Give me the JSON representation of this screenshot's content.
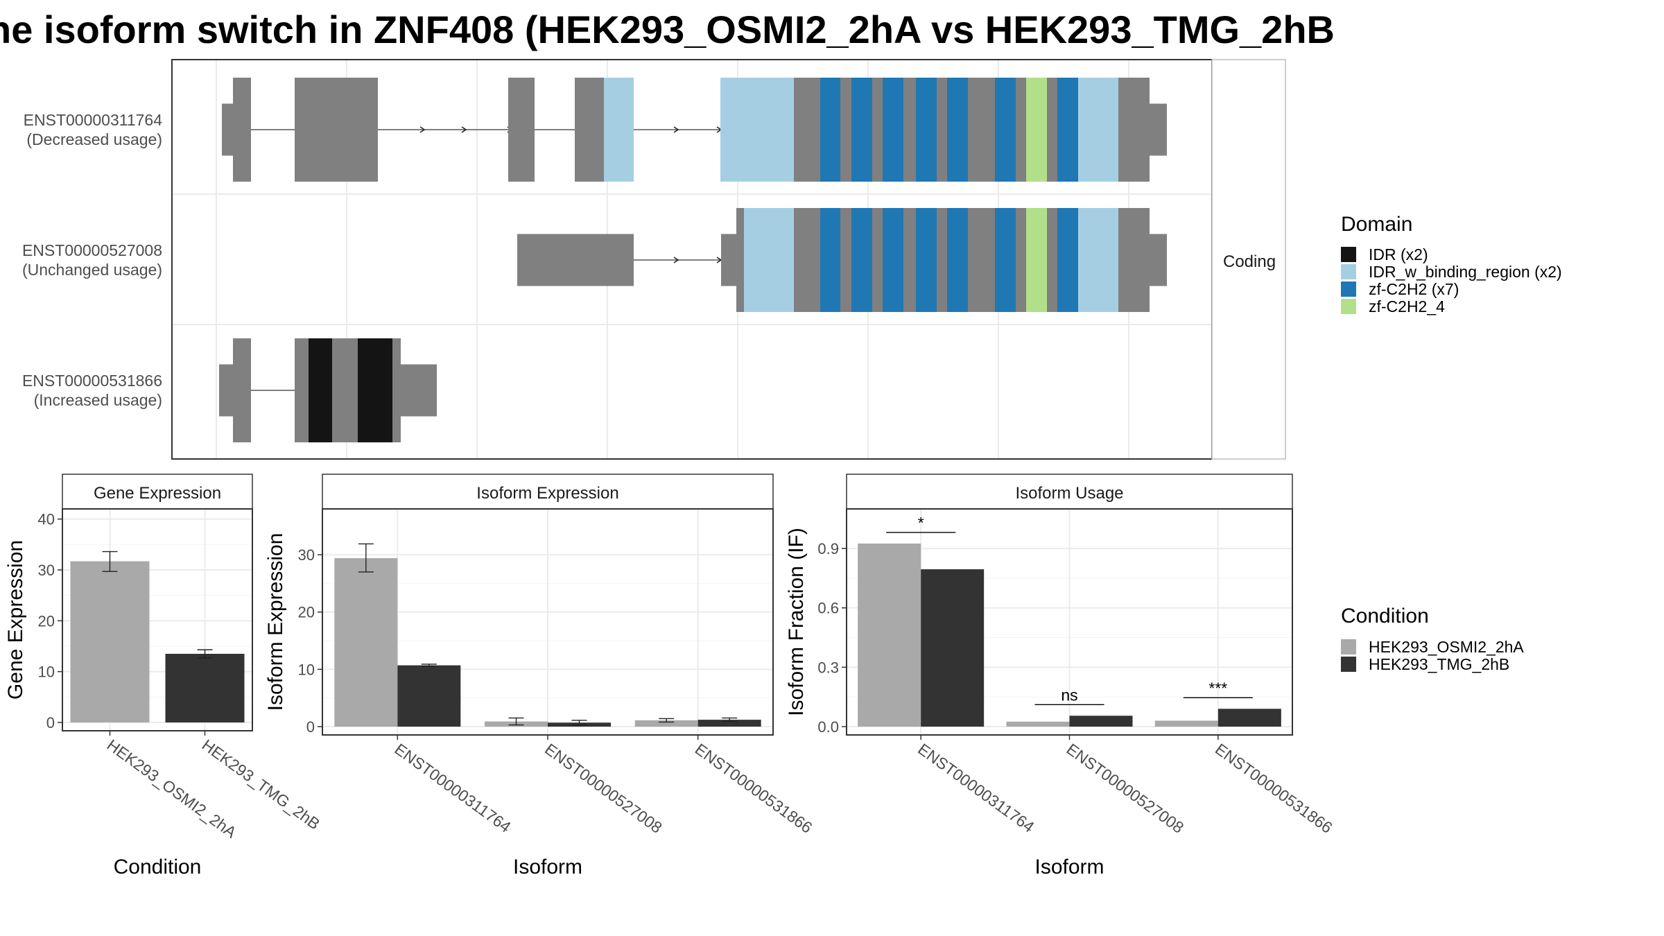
{
  "page": {
    "title": "he isoform switch in ZNF408 (HEK293_OSMI2_2hA vs HEK293_TMG_2hB"
  },
  "colors": {
    "exon": "#808080",
    "idr": "#141414",
    "idr_wb": "#a6cee3",
    "zf_c2h2": "#1f78b4",
    "zf_c2h2_4": "#b2df8a",
    "cond_a": "#a9a9a9",
    "cond_b": "#333333",
    "panel_border": "#333333",
    "grid": "#ebebeb"
  },
  "chart_data": [
    {
      "type": "gene-structure",
      "strip_label": "Coding",
      "transcripts": [
        {
          "id": "ENST00000311764",
          "label": "ENST00000311764",
          "usage": "(Decreased usage)"
        },
        {
          "id": "ENST00000527008",
          "label": "ENST00000527008",
          "usage": "(Unchanged usage)"
        },
        {
          "id": "ENST00000531866",
          "label": "ENST00000531866",
          "usage": "(Increased usage)"
        }
      ],
      "legend": {
        "title": "Domain",
        "items": [
          {
            "label": "IDR (x2)",
            "color": "#141414"
          },
          {
            "label": "IDR_w_binding_region (x2)",
            "color": "#a6cee3"
          },
          {
            "label": "zf-C2H2 (x7)",
            "color": "#1f78b4"
          },
          {
            "label": "zf-C2H2_4",
            "color": "#b2df8a"
          }
        ]
      }
    },
    {
      "type": "bar",
      "strip": "Gene Expression",
      "ylabel": "Gene Expression",
      "xlabel": "Condition",
      "ylim": [
        0,
        42
      ],
      "yticks": [
        0,
        10,
        20,
        30,
        40
      ],
      "categories": [
        "HEK293_OSMI2_2hA",
        "HEK293_TMG_2hB"
      ],
      "values": [
        31.7,
        13.5
      ],
      "errors": [
        [
          29.7,
          33.6
        ],
        [
          12.7,
          14.3
        ]
      ]
    },
    {
      "type": "bar",
      "strip": "Isoform Expression",
      "ylabel": "Isoform Expression",
      "xlabel": "Isoform",
      "ylim": [
        0,
        38
      ],
      "yticks": [
        0,
        10,
        20,
        30
      ],
      "categories": [
        "ENST00000311764",
        "ENST00000527008",
        "ENST00000531866"
      ],
      "series": [
        {
          "name": "HEK293_OSMI2_2hA",
          "values": [
            29.4,
            0.9,
            1.1
          ],
          "errors": [
            [
              27.0,
              31.9
            ],
            [
              0.3,
              1.5
            ],
            [
              0.8,
              1.4
            ]
          ]
        },
        {
          "name": "HEK293_TMG_2hB",
          "values": [
            10.7,
            0.7,
            1.2
          ],
          "errors": [
            [
              10.5,
              10.9
            ],
            [
              0.3,
              1.1
            ],
            [
              0.9,
              1.5
            ]
          ]
        }
      ]
    },
    {
      "type": "bar",
      "strip": "Isoform Usage",
      "ylabel": "Isoform Fraction (IF)",
      "xlabel": "Isoform",
      "ylim": [
        0,
        1.1
      ],
      "yticks": [
        0.0,
        0.3,
        0.6,
        0.9
      ],
      "ytick_labels": [
        "0.0",
        "0.3",
        "0.6",
        "0.9"
      ],
      "categories": [
        "ENST00000311764",
        "ENST00000527008",
        "ENST00000531866"
      ],
      "series": [
        {
          "name": "HEK293_OSMI2_2hA",
          "values": [
            0.925,
            0.025,
            0.03
          ]
        },
        {
          "name": "HEK293_TMG_2hB",
          "values": [
            0.795,
            0.055,
            0.09
          ]
        }
      ],
      "significance": [
        "*",
        "ns",
        "***"
      ],
      "legend": {
        "title": "Condition",
        "items": [
          {
            "label": "HEK293_OSMI2_2hA",
            "color": "#a9a9a9"
          },
          {
            "label": "HEK293_TMG_2hB",
            "color": "#333333"
          }
        ]
      }
    }
  ]
}
